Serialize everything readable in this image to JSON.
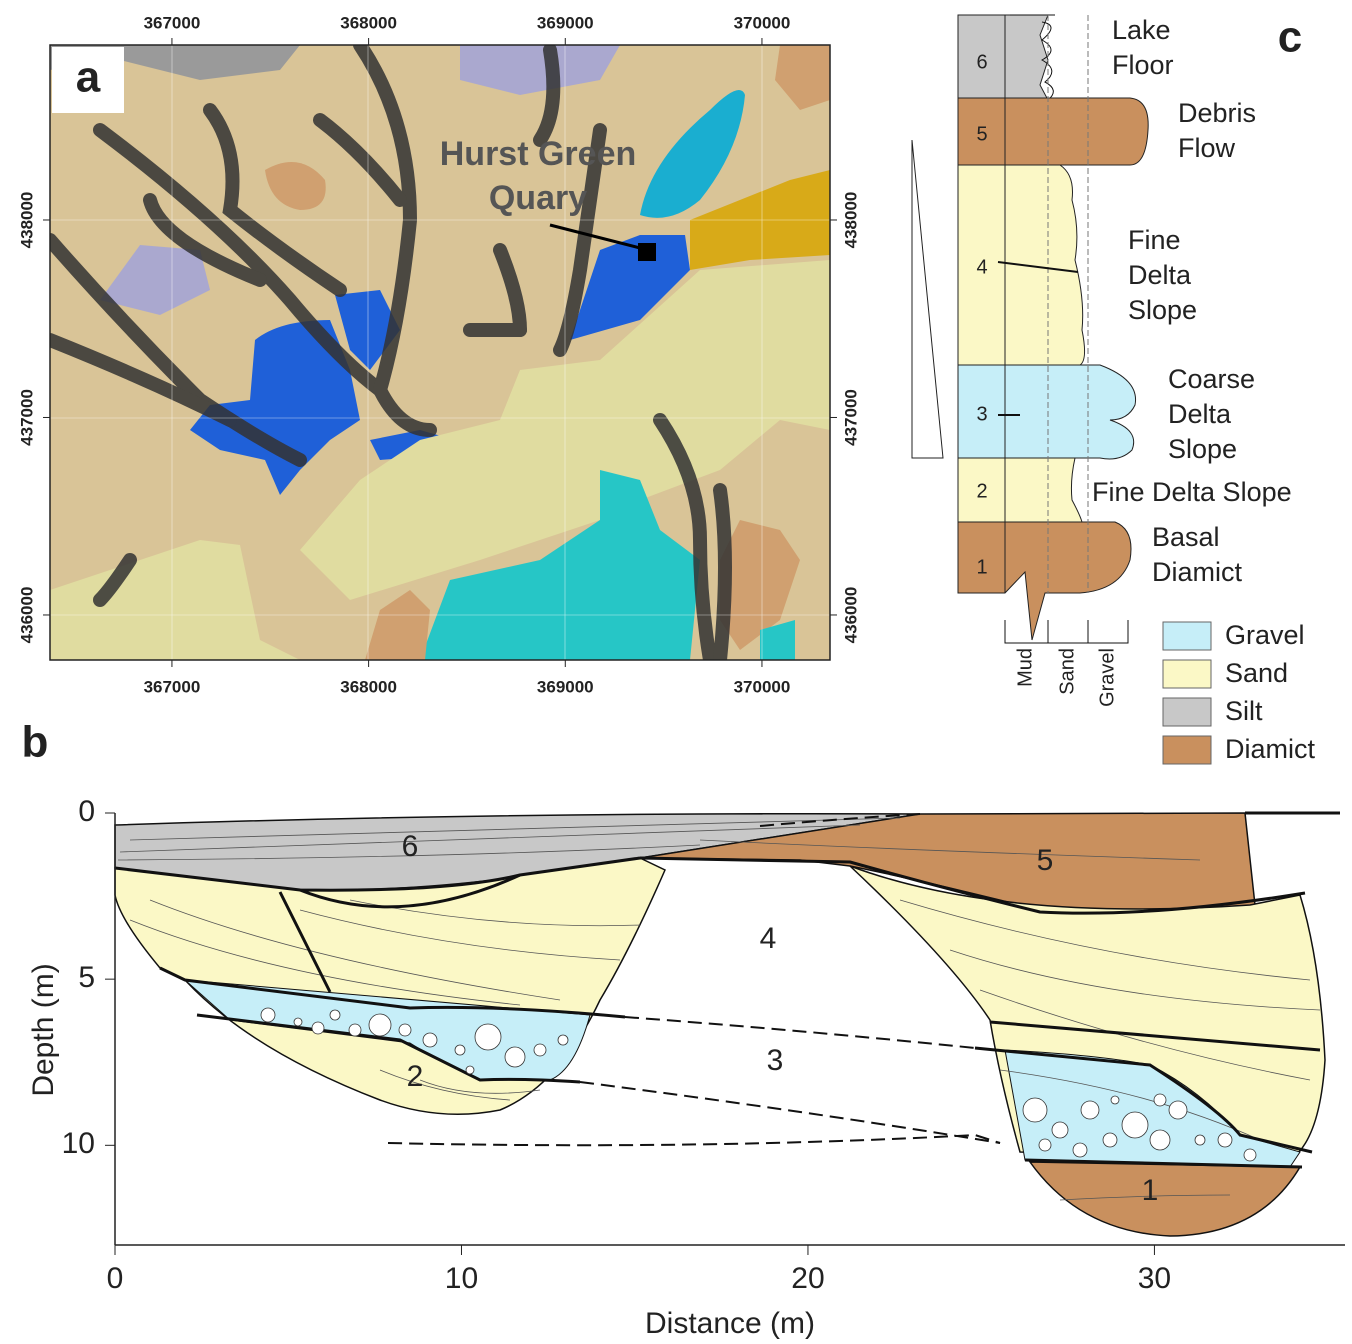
{
  "panel_a": {
    "label": "a",
    "annotation": [
      "Hurst Green",
      "Quary"
    ],
    "xlim": [
      366380,
      370346
    ],
    "ylim": [
      435772,
      438886
    ],
    "xticks": [
      367000,
      368000,
      369000,
      370000
    ],
    "yticks": [
      436000,
      437000,
      438000
    ]
  },
  "panel_b": {
    "label": "b",
    "x_label": "Distance (m)",
    "y_label": "Depth (m)",
    "xlim": [
      0,
      35.5
    ],
    "ylim": [
      0,
      13
    ],
    "xticks": [
      0,
      10,
      20,
      30
    ],
    "yticks": [
      0,
      5,
      10
    ],
    "unit_labels": [
      6,
      5,
      4,
      3,
      2,
      1
    ]
  },
  "panel_c": {
    "label": "c",
    "units": [
      {
        "number": 6,
        "name": [
          "Lake",
          "Floor"
        ]
      },
      {
        "number": 5,
        "name": [
          "Debris",
          "Flow"
        ]
      },
      {
        "number": 4,
        "name": [
          "Fine",
          "Delta",
          "Slope"
        ]
      },
      {
        "number": 3,
        "name": [
          "Coarse",
          "Delta",
          "Slope"
        ]
      },
      {
        "number": 2,
        "name": [
          "Fine Delta Slope"
        ]
      },
      {
        "number": 1,
        "name": [
          "Basal",
          "Diamict"
        ]
      }
    ],
    "grain_sizes": [
      "Mud",
      "Sand",
      "Gravel"
    ]
  },
  "legend": [
    {
      "name": "Gravel",
      "color": "#c6eef8"
    },
    {
      "name": "Sand",
      "color": "#fbf8c6"
    },
    {
      "name": "Silt",
      "color": "#c8c8c8"
    },
    {
      "name": "Diamict",
      "color": "#c9905e"
    }
  ]
}
